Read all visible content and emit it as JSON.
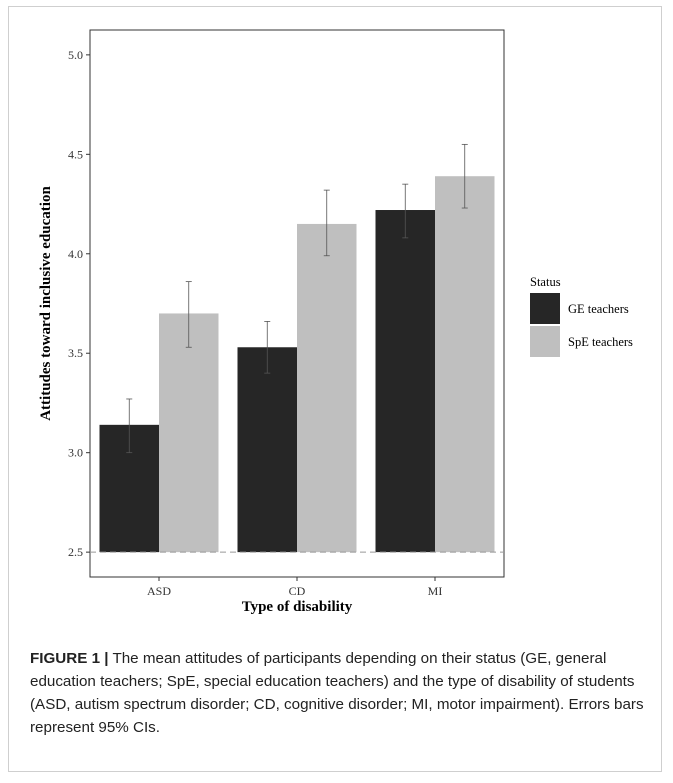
{
  "chart_data": {
    "type": "bar",
    "xlabel": "Type of disability",
    "ylabel": "Attitudes toward inclusive education",
    "categories": [
      "ASD",
      "CD",
      "MI"
    ],
    "ylim": [
      2.5,
      5.0
    ],
    "yticks": [
      "2.5",
      "3.0",
      "3.5",
      "4.0",
      "4.5",
      "5.0"
    ],
    "legend_title": "Status",
    "legend_position": "right",
    "grid": false,
    "series": [
      {
        "name": "GE teachers",
        "color": "#262626",
        "values": [
          3.14,
          3.53,
          4.22
        ],
        "ci_low": [
          3.0,
          3.4,
          4.08
        ],
        "ci_high": [
          3.27,
          3.66,
          4.35
        ]
      },
      {
        "name": "SpE teachers",
        "color": "#bfbfbf",
        "values": [
          3.7,
          4.15,
          4.39
        ],
        "ci_low": [
          3.53,
          3.99,
          4.23
        ],
        "ci_high": [
          3.86,
          4.32,
          4.55
        ]
      }
    ],
    "reference_line": 2.5
  },
  "caption": {
    "label": "FIGURE 1 |",
    "text": " The mean attitudes of participants depending on their status (GE, general education teachers; SpE, special education teachers) and the type of disability of students (ASD, autism spectrum disorder; CD, cognitive disorder; MI, motor impairment). Errors bars represent 95% CIs."
  }
}
